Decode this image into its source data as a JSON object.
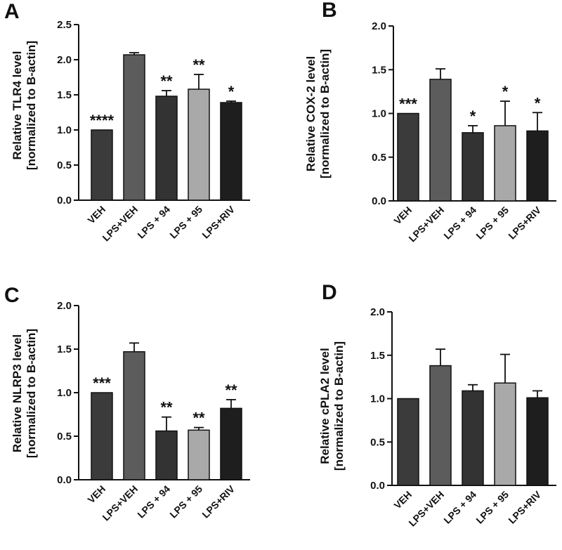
{
  "figure": {
    "colors": {
      "VEH": "#3b3b3b",
      "LPS+VEH": "#5c5c5c",
      "LPS + 94": "#333333",
      "LPS + 95": "#a9a9a9",
      "LPS+RIV": "#1e1e1e",
      "axis": "#111111"
    }
  },
  "chart_data": [
    {
      "panel": "A",
      "type": "bar",
      "ylabel_line1": "Relative TLR4 level",
      "ylabel_line2": "[normalized to B-actin]",
      "categories": [
        "VEH",
        "LPS+VEH",
        "LPS + 94",
        "LPS + 95",
        "LPS+RIV"
      ],
      "values": [
        1.0,
        2.07,
        1.48,
        1.58,
        1.39
      ],
      "errors": [
        0.0,
        0.03,
        0.08,
        0.21,
        0.02
      ],
      "significance": [
        "****",
        "",
        "**",
        "**",
        "*"
      ],
      "ylim": [
        0,
        2.5
      ],
      "yticks": [
        "0.0",
        "0.5",
        "1.0",
        "1.5",
        "2.0",
        "2.5"
      ]
    },
    {
      "panel": "B",
      "type": "bar",
      "ylabel_line1": "Relative COX-2 level",
      "ylabel_line2": "[normalized to B-actin]",
      "categories": [
        "VEH",
        "LPS+VEH",
        "LPS + 94",
        "LPS + 95",
        "LPS+RIV"
      ],
      "values": [
        1.0,
        1.39,
        0.78,
        0.86,
        0.8
      ],
      "errors": [
        0.0,
        0.12,
        0.08,
        0.28,
        0.21
      ],
      "significance": [
        "***",
        "",
        "*",
        "*",
        "*"
      ],
      "ylim": [
        0,
        2.0
      ],
      "yticks": [
        "0.0",
        "0.5",
        "1.0",
        "1.5",
        "2.0"
      ]
    },
    {
      "panel": "C",
      "type": "bar",
      "ylabel_line1": "Relative NLRP3 level",
      "ylabel_line2": "[normalized to B-actin]",
      "categories": [
        "VEH",
        "LPS+VEH",
        "LPS + 94",
        "LPS + 95",
        "LPS+RIV"
      ],
      "values": [
        1.0,
        1.47,
        0.56,
        0.57,
        0.82
      ],
      "errors": [
        0.0,
        0.1,
        0.16,
        0.03,
        0.1
      ],
      "significance": [
        "***",
        "",
        "**",
        "**",
        "**"
      ],
      "ylim": [
        0,
        2.0
      ],
      "yticks": [
        "0.0",
        "0.5",
        "1.0",
        "1.5",
        "2.0"
      ]
    },
    {
      "panel": "D",
      "type": "bar",
      "ylabel_line1": "Relative cPLA2 level",
      "ylabel_line2": "[normalized to B-actin]",
      "categories": [
        "VEH",
        "LPS+VEH",
        "LPS + 94",
        "LPS + 95",
        "LPS+RIV"
      ],
      "values": [
        1.0,
        1.38,
        1.09,
        1.18,
        1.01
      ],
      "errors": [
        0.0,
        0.19,
        0.07,
        0.33,
        0.08
      ],
      "significance": [
        "",
        "",
        "",
        "",
        ""
      ],
      "ylim": [
        0,
        2.0
      ],
      "yticks": [
        "0.0",
        "0.5",
        "1.0",
        "1.5",
        "2.0"
      ]
    }
  ]
}
